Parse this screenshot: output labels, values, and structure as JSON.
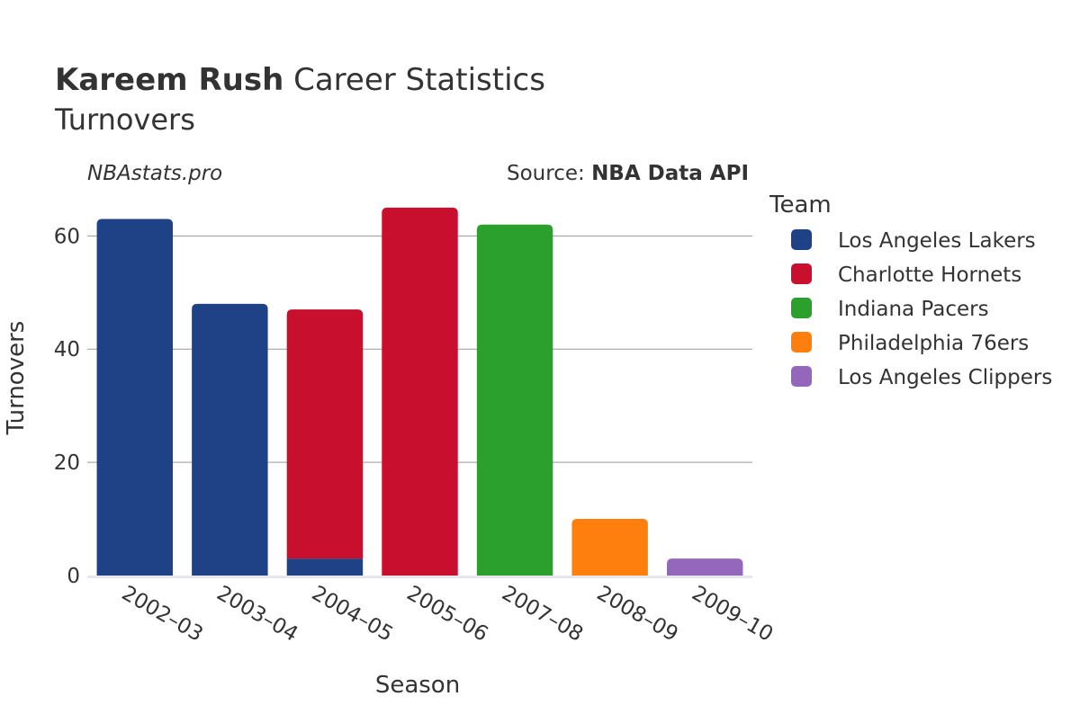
{
  "header": {
    "title_bold": "Kareem Rush",
    "title_rest": " Career Statistics",
    "subtitle": "Turnovers"
  },
  "watermark": "NBAstats.pro",
  "source": {
    "prefix": "Source: ",
    "name": "NBA Data API"
  },
  "chart_data": {
    "type": "bar",
    "stacked": true,
    "xlabel": "Season",
    "ylabel": "Turnovers",
    "ylim": [
      0,
      68
    ],
    "yticks": [
      0,
      20,
      40,
      60
    ],
    "grid": true,
    "legend_title": "Team",
    "legend_position": "right",
    "categories": [
      "2002–03",
      "2003–04",
      "2004–05",
      "2005–06",
      "2007–08",
      "2008–09",
      "2009–10"
    ],
    "series": [
      {
        "name": "Los Angeles Lakers",
        "color": "#1f4287",
        "values": [
          63,
          48,
          3,
          0,
          0,
          0,
          0
        ]
      },
      {
        "name": "Charlotte Hornets",
        "color": "#c8102e",
        "values": [
          0,
          0,
          44,
          65,
          0,
          0,
          0
        ]
      },
      {
        "name": "Indiana Pacers",
        "color": "#2ca02c",
        "values": [
          0,
          0,
          0,
          0,
          62,
          0,
          0
        ]
      },
      {
        "name": "Philadelphia 76ers",
        "color": "#ff7f0e",
        "values": [
          0,
          0,
          0,
          0,
          0,
          10,
          0
        ]
      },
      {
        "name": "Los Angeles Clippers",
        "color": "#9467bd",
        "values": [
          0,
          0,
          0,
          0,
          0,
          0,
          3
        ]
      }
    ]
  },
  "colors": {
    "grid": "#999999",
    "axis_line": "#e6e6ec",
    "text": "#333333"
  }
}
